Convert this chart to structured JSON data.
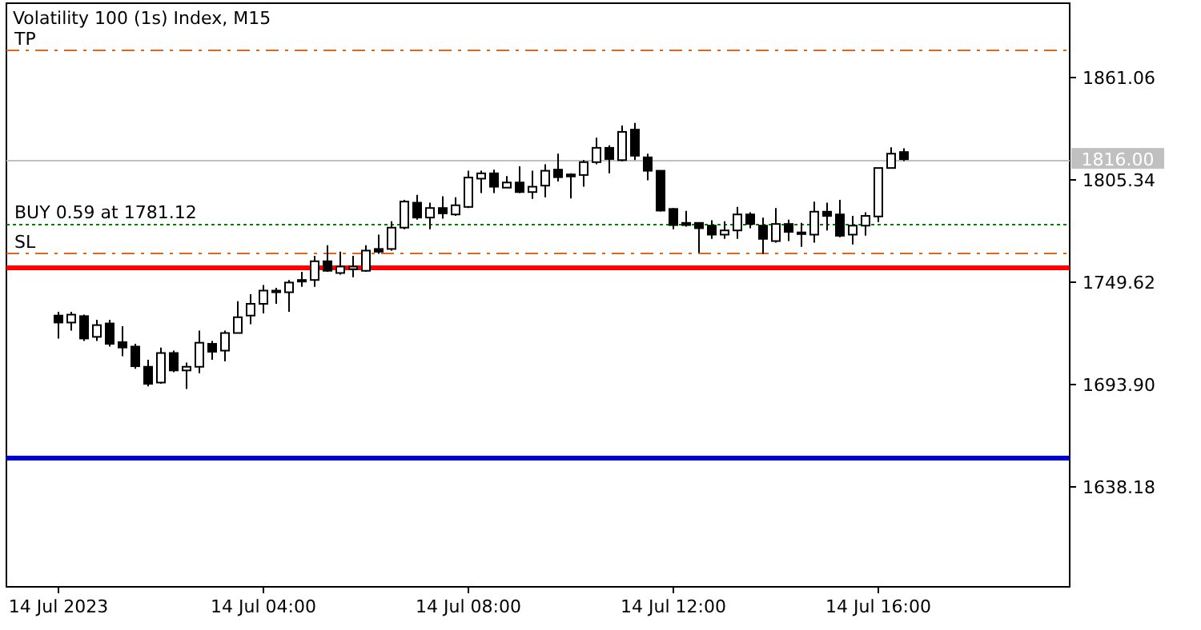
{
  "chart_data": {
    "type": "candlestick",
    "title": "Volatility 100 (1s) Index, M15",
    "x": [
      "2023-07-14T00:00",
      "2023-07-14T00:15",
      "2023-07-14T00:30",
      "2023-07-14T00:45",
      "2023-07-14T01:00",
      "2023-07-14T01:15",
      "2023-07-14T01:30",
      "2023-07-14T01:45",
      "2023-07-14T02:00",
      "2023-07-14T02:15",
      "2023-07-14T02:30",
      "2023-07-14T02:45",
      "2023-07-14T03:00",
      "2023-07-14T03:15",
      "2023-07-14T03:30",
      "2023-07-14T03:45",
      "2023-07-14T04:00",
      "2023-07-14T04:15",
      "2023-07-14T04:30",
      "2023-07-14T04:45",
      "2023-07-14T05:00",
      "2023-07-14T05:15",
      "2023-07-14T05:30",
      "2023-07-14T05:45",
      "2023-07-14T06:00",
      "2023-07-14T06:15",
      "2023-07-14T06:30",
      "2023-07-14T06:45",
      "2023-07-14T07:00",
      "2023-07-14T07:15",
      "2023-07-14T07:30",
      "2023-07-14T07:45",
      "2023-07-14T08:00",
      "2023-07-14T08:15",
      "2023-07-14T08:30",
      "2023-07-14T08:45",
      "2023-07-14T09:00",
      "2023-07-14T09:15",
      "2023-07-14T09:30",
      "2023-07-14T09:45",
      "2023-07-14T10:00",
      "2023-07-14T10:15",
      "2023-07-14T10:30",
      "2023-07-14T10:45",
      "2023-07-14T11:00",
      "2023-07-14T11:15",
      "2023-07-14T11:30",
      "2023-07-14T11:45",
      "2023-07-14T12:00",
      "2023-07-14T12:15",
      "2023-07-14T12:30",
      "2023-07-14T12:45",
      "2023-07-14T13:00",
      "2023-07-14T13:15",
      "2023-07-14T13:30",
      "2023-07-14T13:45",
      "2023-07-14T14:00",
      "2023-07-14T14:15",
      "2023-07-14T14:30",
      "2023-07-14T14:45",
      "2023-07-14T15:00",
      "2023-07-14T15:15",
      "2023-07-14T15:30",
      "2023-07-14T15:45",
      "2023-07-14T16:00",
      "2023-07-14T16:15",
      "2023-07-14T16:30"
    ],
    "ohlc": [
      [
        1730.8,
        1732.8,
        1718.3,
        1727.0
      ],
      [
        1727.0,
        1732.8,
        1722.6,
        1731.3
      ],
      [
        1730.5,
        1731.3,
        1716.9,
        1718.3
      ],
      [
        1719.2,
        1728.5,
        1716.9,
        1725.6
      ],
      [
        1726.5,
        1728.5,
        1713.9,
        1715.4
      ],
      [
        1716.3,
        1725.0,
        1708.7,
        1713.4
      ],
      [
        1713.9,
        1715.4,
        1701.8,
        1703.2
      ],
      [
        1702.9,
        1706.7,
        1692.2,
        1693.6
      ],
      [
        1694.3,
        1713.4,
        1693.6,
        1710.4
      ],
      [
        1710.4,
        1711.7,
        1700.0,
        1700.9
      ],
      [
        1700.9,
        1705.2,
        1690.8,
        1702.9
      ],
      [
        1702.9,
        1722.6,
        1699.4,
        1716.0
      ],
      [
        1715.4,
        1716.9,
        1706.7,
        1711.1
      ],
      [
        1711.7,
        1722.6,
        1705.8,
        1721.3
      ],
      [
        1721.3,
        1738.6,
        1721.3,
        1729.9
      ],
      [
        1730.8,
        1742.4,
        1726.1,
        1737.2
      ],
      [
        1737.2,
        1747.4,
        1732.0,
        1744.4
      ],
      [
        1743.5,
        1745.9,
        1737.2,
        1744.4
      ],
      [
        1743.5,
        1750.2,
        1732.8,
        1748.8
      ],
      [
        1749.4,
        1754.6,
        1746.5,
        1750.2
      ],
      [
        1750.2,
        1763.3,
        1746.5,
        1760.4
      ],
      [
        1760.4,
        1769.1,
        1754.6,
        1755.2
      ],
      [
        1754.0,
        1765.6,
        1753.1,
        1757.5
      ],
      [
        1756.1,
        1763.3,
        1751.7,
        1757.5
      ],
      [
        1755.2,
        1769.1,
        1754.6,
        1766.2
      ],
      [
        1767.1,
        1774.9,
        1764.4,
        1765.6
      ],
      [
        1767.1,
        1782.2,
        1766.2,
        1778.7
      ],
      [
        1778.7,
        1793.8,
        1777.8,
        1792.9
      ],
      [
        1792.3,
        1796.6,
        1783.1,
        1784.2
      ],
      [
        1784.2,
        1792.3,
        1777.8,
        1789.4
      ],
      [
        1789.4,
        1795.8,
        1783.6,
        1786.5
      ],
      [
        1785.9,
        1795.2,
        1785.1,
        1790.9
      ],
      [
        1790.0,
        1809.7,
        1789.4,
        1806.0
      ],
      [
        1805.4,
        1809.7,
        1797.5,
        1808.3
      ],
      [
        1808.3,
        1810.3,
        1797.5,
        1801.0
      ],
      [
        1800.5,
        1806.8,
        1800.5,
        1803.3
      ],
      [
        1803.3,
        1812.1,
        1797.5,
        1798.1
      ],
      [
        1798.1,
        1809.7,
        1794.4,
        1801.0
      ],
      [
        1801.6,
        1813.2,
        1795.2,
        1809.7
      ],
      [
        1810.3,
        1819.0,
        1803.9,
        1806.2
      ],
      [
        1807.7,
        1808.3,
        1794.6,
        1806.6
      ],
      [
        1807.4,
        1815.5,
        1801.0,
        1814.4
      ],
      [
        1814.4,
        1827.7,
        1813.2,
        1822.2
      ],
      [
        1822.2,
        1823.6,
        1808.3,
        1816.1
      ],
      [
        1815.5,
        1834.4,
        1814.9,
        1830.9
      ],
      [
        1832.1,
        1835.8,
        1815.5,
        1817.9
      ],
      [
        1817.0,
        1819.0,
        1804.5,
        1809.7
      ],
      [
        1809.7,
        1809.7,
        1787.5,
        1788.0
      ],
      [
        1788.9,
        1789.4,
        1777.8,
        1780.1
      ],
      [
        1781.3,
        1787.9,
        1779.2,
        1780.1
      ],
      [
        1781.3,
        1781.3,
        1765.0,
        1778.4
      ],
      [
        1779.8,
        1782.7,
        1772.6,
        1774.9
      ],
      [
        1774.9,
        1782.2,
        1772.6,
        1777.2
      ],
      [
        1777.2,
        1790.0,
        1772.6,
        1785.9
      ],
      [
        1785.9,
        1787.1,
        1778.4,
        1780.7
      ],
      [
        1779.8,
        1784.2,
        1764.4,
        1772.6
      ],
      [
        1771.4,
        1789.4,
        1770.5,
        1780.7
      ],
      [
        1780.7,
        1783.1,
        1771.4,
        1776.4
      ],
      [
        1776.1,
        1781.3,
        1768.3,
        1775.2
      ],
      [
        1774.9,
        1792.9,
        1770.5,
        1787.4
      ],
      [
        1787.4,
        1792.3,
        1777.2,
        1785.1
      ],
      [
        1785.9,
        1793.8,
        1773.5,
        1774.3
      ],
      [
        1774.9,
        1785.1,
        1769.6,
        1779.8
      ],
      [
        1779.8,
        1787.1,
        1774.3,
        1785.1
      ],
      [
        1784.8,
        1811.2,
        1781.8,
        1811.2
      ],
      [
        1811.2,
        1822.5,
        1811.2,
        1819.0
      ],
      [
        1819.9,
        1821.9,
        1815.0,
        1816.0
      ]
    ],
    "color": "#000000",
    "xlim": [
      "2023-07-13T23:00",
      "2023-07-14T19:45"
    ],
    "xticks": [
      {
        "value": "2023-07-14T00:00",
        "label": "14 Jul 2023"
      },
      {
        "value": "2023-07-14T04:00",
        "label": "14 Jul 04:00"
      },
      {
        "value": "2023-07-14T08:00",
        "label": "14 Jul 08:00"
      },
      {
        "value": "2023-07-14T12:00",
        "label": "14 Jul 12:00"
      },
      {
        "value": "2023-07-14T16:00",
        "label": "14 Jul 16:00"
      }
    ],
    "ylim": [
      1583,
      1901
    ],
    "yticks": [
      1861.06,
      1805.34,
      1749.62,
      {
        "value": 1693.9,
        "label": "1693.90"
      },
      1638.18
    ],
    "ref_lines": [
      {
        "axis": "y",
        "value": 1875.6,
        "label": "TP",
        "color": "#e0661e",
        "line_style": "dashed"
      },
      {
        "axis": "y",
        "value": 1781.12,
        "label": "BUY 0.59 at 1781.12",
        "color": "#008000",
        "line_style": "dotted"
      },
      {
        "axis": "y",
        "value": 1765.0,
        "label": "SL",
        "color": "#e0661e",
        "line_style": "dashed"
      },
      {
        "axis": "y",
        "value": 1816.0,
        "label": "1816.00",
        "color": "#c0c0c0",
        "line_style": "solid"
      },
      {
        "axis": "y",
        "value": 1757.2,
        "color": "#ff0000",
        "line_style": "solid"
      },
      {
        "axis": "y",
        "value": 1653.6,
        "color": "#0000cd",
        "line_style": "solid"
      }
    ]
  }
}
